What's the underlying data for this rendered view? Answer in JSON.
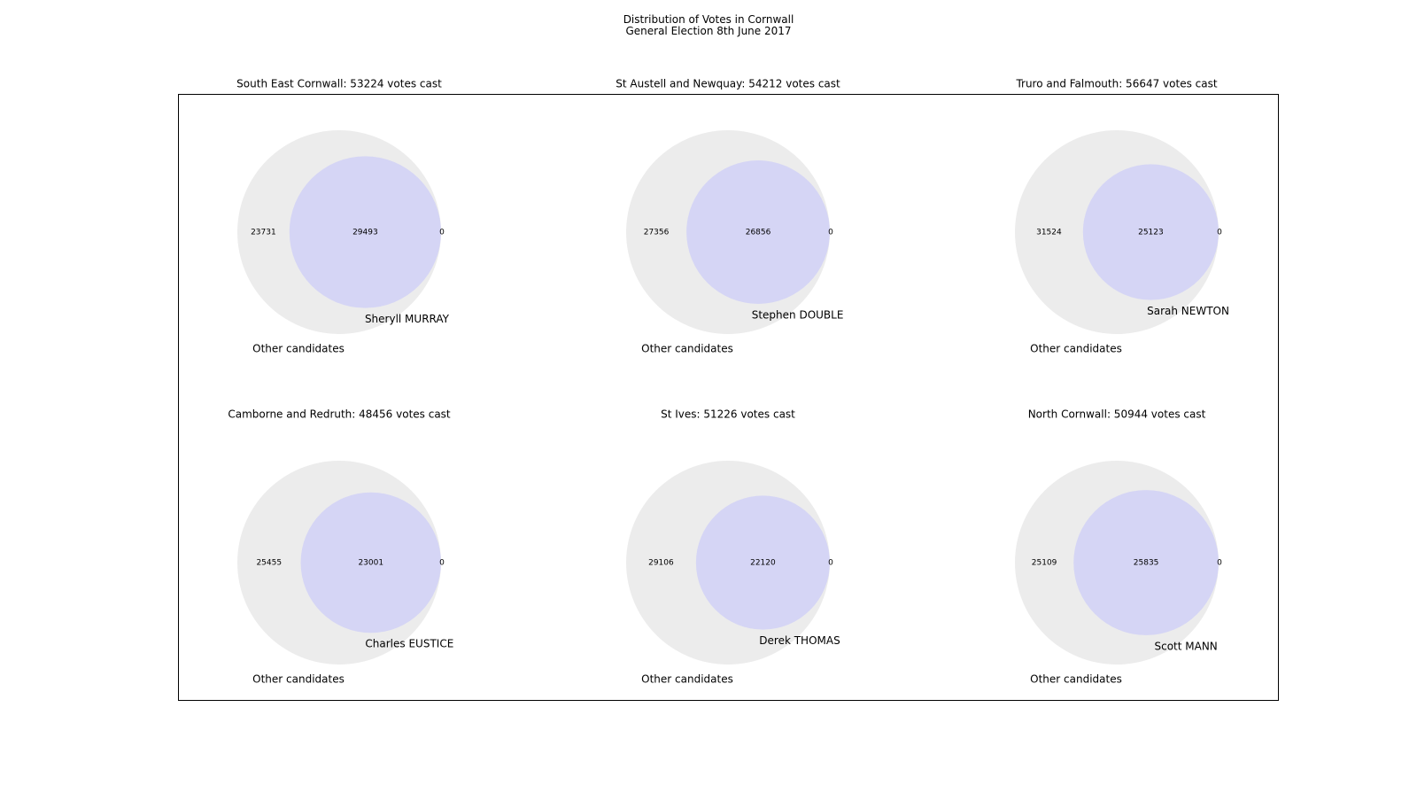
{
  "figure_title": {
    "line1": "Distribution of Votes in Cornwall",
    "line2": "General Election 8th June 2017"
  },
  "colors": {
    "outer_circle": "#ececec",
    "inner_circle": "#d5d5f5",
    "frame": "#000000"
  },
  "chart_data": [
    {
      "type": "venn",
      "title": "South East Cornwall: 53224 votes cast",
      "sets": [
        "Other candidates",
        "Sheryll MURRAY"
      ],
      "regions": {
        "only_other": 23731,
        "overlap": 29493,
        "only_winner": 0
      }
    },
    {
      "type": "venn",
      "title": "St Austell and Newquay: 54212 votes cast",
      "sets": [
        "Other candidates",
        "Stephen DOUBLE"
      ],
      "regions": {
        "only_other": 27356,
        "overlap": 26856,
        "only_winner": 0
      }
    },
    {
      "type": "venn",
      "title": "Truro and Falmouth: 56647 votes cast",
      "sets": [
        "Other candidates",
        "Sarah NEWTON"
      ],
      "regions": {
        "only_other": 31524,
        "overlap": 25123,
        "only_winner": 0
      }
    },
    {
      "type": "venn",
      "title": "Camborne and Redruth: 48456 votes cast",
      "sets": [
        "Other candidates",
        "Charles EUSTICE"
      ],
      "regions": {
        "only_other": 25455,
        "overlap": 23001,
        "only_winner": 0
      }
    },
    {
      "type": "venn",
      "title": "St Ives: 51226 votes cast",
      "sets": [
        "Other candidates",
        "Derek THOMAS"
      ],
      "regions": {
        "only_other": 29106,
        "overlap": 22120,
        "only_winner": 0
      }
    },
    {
      "type": "venn",
      "title": "North Cornwall: 50944 votes cast",
      "sets": [
        "Other candidates",
        "Scott MANN"
      ],
      "regions": {
        "only_other": 25109,
        "overlap": 25835,
        "only_winner": 0
      }
    }
  ]
}
